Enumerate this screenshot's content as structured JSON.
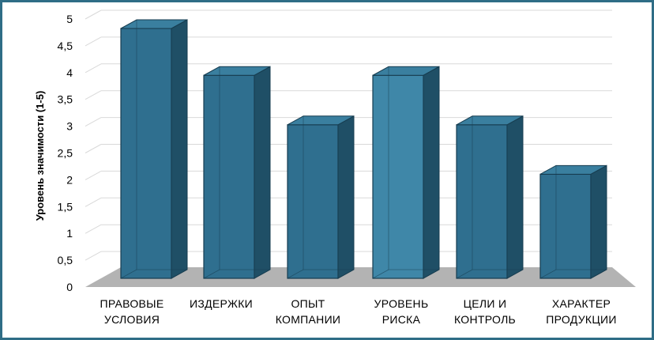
{
  "chart_data": {
    "type": "bar",
    "style": "3d-column",
    "title": "",
    "xlabel": "",
    "ylabel": "Уровень значимости (1-5)",
    "ylim": [
      0,
      5
    ],
    "yticks": [
      "0",
      "0,5",
      "1",
      "1,5",
      "2",
      "2,5",
      "3",
      "3,5",
      "4",
      "4,5",
      "5"
    ],
    "categories": [
      [
        "ПРАВОВЫЕ",
        "УСЛОВИЯ"
      ],
      [
        "ИЗДЕРЖКИ"
      ],
      [
        "ОПЫТ",
        "КОМПАНИИ"
      ],
      [
        "УРОВЕНЬ",
        "РИСКА"
      ],
      [
        "ЦЕЛИ И",
        "КОНТРОЛЬ"
      ],
      [
        "ХАРАКТЕР",
        "ПРОДУКЦИИ"
      ]
    ],
    "values": [
      4.8,
      3.9,
      2.95,
      3.9,
      2.95,
      2.0
    ],
    "grid": true,
    "legend": "none",
    "colors": {
      "front": "#2f6f8f",
      "front_light": "#3f87a8",
      "side": "#1f4f66",
      "top": "#3a7f9f",
      "edge": "#173d50",
      "floor": "#b3b3b3",
      "grid": "#d9d9d9",
      "frame": "#2f6d86"
    }
  }
}
